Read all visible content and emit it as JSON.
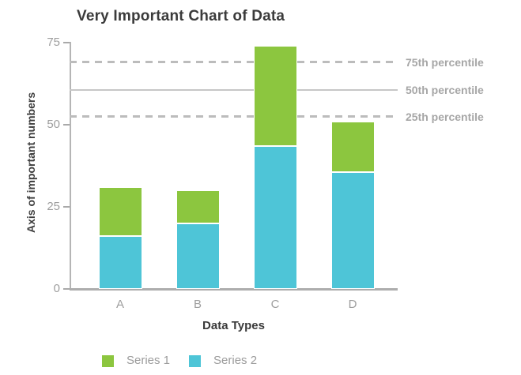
{
  "chart_data": {
    "type": "bar",
    "stacked": true,
    "title": "Very Important Chart of Data",
    "xlabel": "Data Types",
    "ylabel": "Axis of important numbers",
    "categories": [
      "A",
      "B",
      "C",
      "D"
    ],
    "series": [
      {
        "name": "Series 1",
        "color": "#8CC63F",
        "position": "top",
        "values": [
          15,
          10,
          30.5,
          15.5
        ]
      },
      {
        "name": "Series 2",
        "color": "#4EC5D7",
        "position": "bottom",
        "values": [
          16,
          20,
          43.5,
          35.5
        ]
      }
    ],
    "stack_totals": [
      31,
      30,
      74,
      51
    ],
    "ylim": [
      0,
      75
    ],
    "yticks": [
      0,
      25,
      50,
      75
    ],
    "reference_lines": [
      {
        "label": "75th percentile",
        "value": 69,
        "style": "dashed"
      },
      {
        "label": "50th percentile",
        "value": 60.5,
        "style": "solid"
      },
      {
        "label": "25th percentile",
        "value": 52.5,
        "style": "dashed"
      }
    ],
    "legend": {
      "position": "bottom",
      "entries": [
        "Series 1",
        "Series 2"
      ]
    },
    "grid": false
  }
}
